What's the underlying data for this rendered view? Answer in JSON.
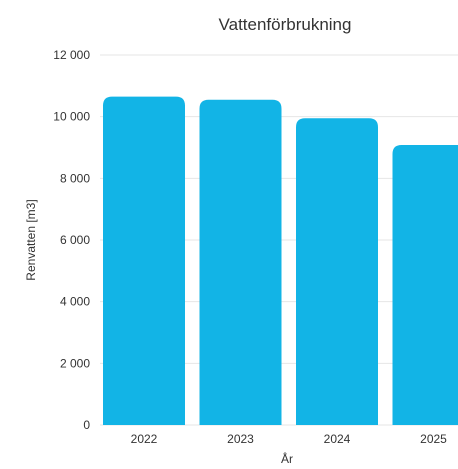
{
  "chart_data": {
    "type": "bar",
    "title": "Vattenförbrukning",
    "xlabel": "År",
    "ylabel": "Renvatten [m3]",
    "categories": [
      "2022",
      "2023",
      "2024",
      "2025"
    ],
    "values": [
      10650,
      10550,
      9950,
      9080
    ],
    "ylim": [
      0,
      12000
    ],
    "yticks": [
      0,
      2000,
      4000,
      6000,
      8000,
      10000,
      12000
    ],
    "ytick_labels": [
      "0",
      "2 000",
      "4 000",
      "6 000",
      "8 000",
      "10 000",
      "12 000"
    ],
    "grid": true,
    "legend": "none",
    "bar_color": "#12b4e6"
  }
}
